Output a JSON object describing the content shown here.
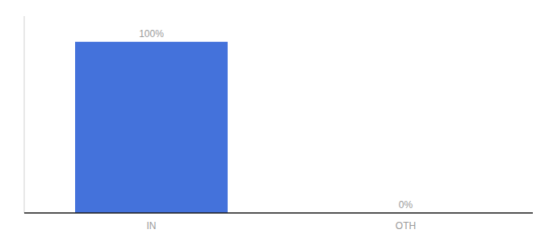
{
  "chart_data": {
    "type": "bar",
    "categories": [
      "IN",
      "OTH"
    ],
    "values": [
      100,
      0
    ],
    "value_labels": [
      "100%",
      "0%"
    ],
    "data_labels": true,
    "color": "#4472db",
    "ylim": [
      0,
      115
    ],
    "tick_labels": "x"
  }
}
